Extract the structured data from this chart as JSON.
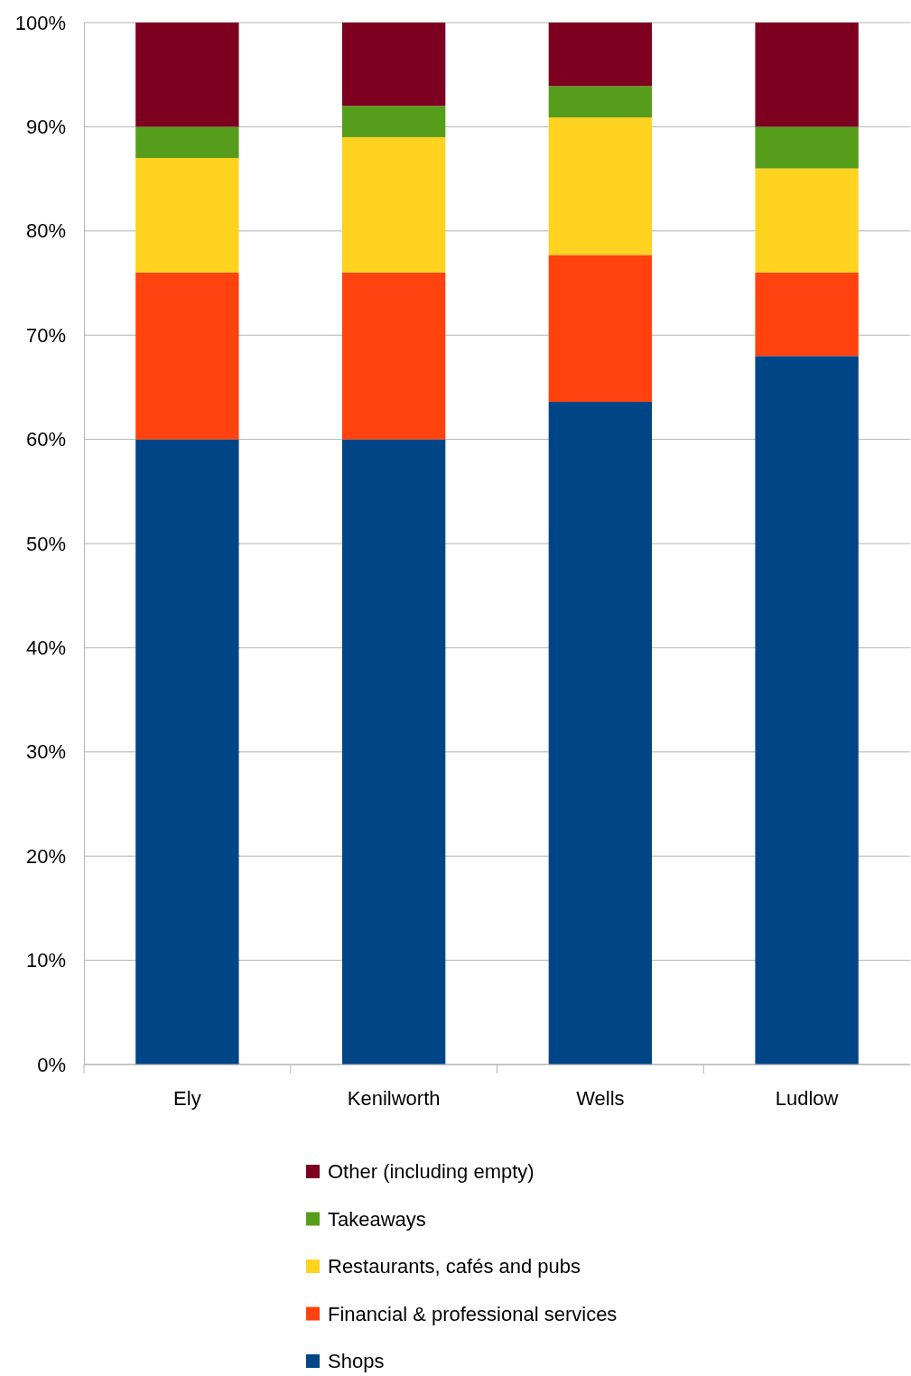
{
  "chart_data": {
    "type": "bar",
    "stacked": true,
    "categories": [
      "Ely",
      "Kenilworth",
      "Wells",
      "Ludlow"
    ],
    "series": [
      {
        "name": "Shops",
        "color": "#004586",
        "values": [
          60,
          60,
          63.6,
          68
        ]
      },
      {
        "name": "Financial & professional services",
        "color": "#ff420e",
        "values": [
          16,
          16,
          14.1,
          8
        ]
      },
      {
        "name": "Restaurants, cafés and pubs",
        "color": "#ffd320",
        "values": [
          11,
          13,
          13.2,
          10
        ]
      },
      {
        "name": "Takeaways",
        "color": "#579d1c",
        "values": [
          3,
          3,
          3,
          4
        ]
      },
      {
        "name": "Other (including empty)",
        "color": "#7e0021",
        "values": [
          10,
          8,
          6.1,
          10
        ]
      }
    ],
    "ylim": [
      0,
      100
    ],
    "yticks": [
      {
        "value": 0,
        "label": "0%"
      },
      {
        "value": 10,
        "label": "10%"
      },
      {
        "value": 20,
        "label": "20%"
      },
      {
        "value": 30,
        "label": "30%"
      },
      {
        "value": 40,
        "label": "40%"
      },
      {
        "value": 50,
        "label": "50%"
      },
      {
        "value": 60,
        "label": "60%"
      },
      {
        "value": 70,
        "label": "70%"
      },
      {
        "value": 80,
        "label": "80%"
      },
      {
        "value": 90,
        "label": "90%"
      },
      {
        "value": 100,
        "label": "100%"
      }
    ],
    "grid": "y",
    "legend": "bottom"
  }
}
